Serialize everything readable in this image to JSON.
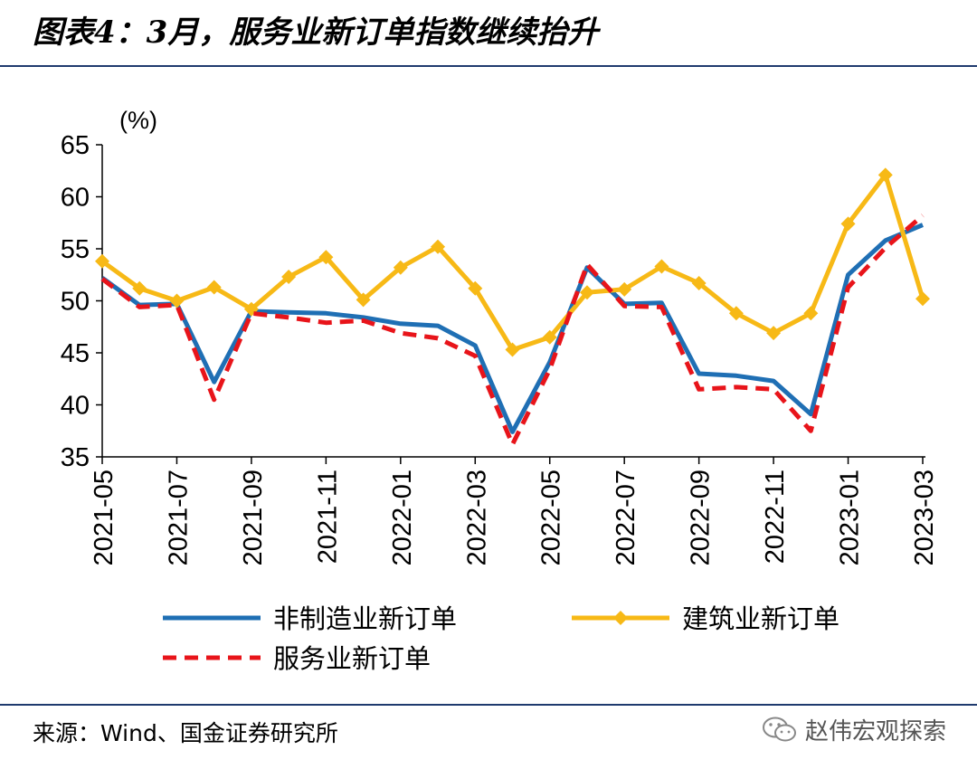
{
  "title": "图表4：3月，服务业新订单指数继续抬升",
  "source": "来源：Wind、国金证券研究所",
  "watermark": "赵伟宏观探索",
  "chart_data": {
    "type": "line",
    "unit": "(%)",
    "ylim": [
      35,
      65
    ],
    "yticks": [
      35,
      40,
      45,
      50,
      55,
      60,
      65
    ],
    "x": [
      "2021-05",
      "2021-06",
      "2021-07",
      "2021-08",
      "2021-09",
      "2021-10",
      "2021-11",
      "2021-12",
      "2022-01",
      "2022-02",
      "2022-03",
      "2022-04",
      "2022-05",
      "2022-06",
      "2022-07",
      "2022-08",
      "2022-09",
      "2022-10",
      "2022-11",
      "2022-12",
      "2023-01",
      "2023-02",
      "2023-03"
    ],
    "xtick_labels": [
      "2021-05",
      "2021-07",
      "2021-09",
      "2021-11",
      "2022-01",
      "2022-03",
      "2022-05",
      "2022-07",
      "2022-09",
      "2022-11",
      "2023-01",
      "2023-03"
    ],
    "grid": false,
    "legend_position": "bottom",
    "series": [
      {
        "name": "非制造业新订单",
        "color": "#1f6fb4",
        "style": "solid",
        "marker": "none",
        "values": [
          52.2,
          49.6,
          49.7,
          42.2,
          49.0,
          48.9,
          48.8,
          48.4,
          47.8,
          47.6,
          45.7,
          37.4,
          44.1,
          53.2,
          49.7,
          49.8,
          43.0,
          42.8,
          42.3,
          39.1,
          52.5,
          55.8,
          57.3
        ]
      },
      {
        "name": "建筑业新订单",
        "color": "#f7b916",
        "style": "solid",
        "marker": "diamond",
        "values": [
          53.8,
          51.2,
          50.0,
          51.3,
          49.2,
          52.3,
          54.2,
          50.1,
          53.2,
          55.2,
          51.2,
          45.3,
          46.5,
          50.8,
          51.1,
          53.3,
          51.7,
          48.8,
          46.9,
          48.8,
          57.4,
          62.1,
          50.2
        ]
      },
      {
        "name": "服务业新订单",
        "color": "#e8141a",
        "style": "dashed",
        "marker": "none",
        "values": [
          52.1,
          49.4,
          49.6,
          40.5,
          48.8,
          48.4,
          47.9,
          48.1,
          46.9,
          46.4,
          44.7,
          36.2,
          43.4,
          53.5,
          49.5,
          49.4,
          41.5,
          41.7,
          41.5,
          37.5,
          51.3,
          55.1,
          58.2
        ]
      }
    ]
  }
}
